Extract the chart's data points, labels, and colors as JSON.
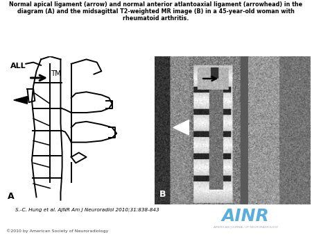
{
  "title": "Normal apical ligament (arrow) and normal anterior atlantoaxial ligament (arrowhead) in the\ndiagram (A) and the midsagittal T2-weighted MR image (B) in a 45-year-old woman with\nrheumatoid arthritis.",
  "citation": "S.-C. Hung et al. AJNR Am J Neuroradiol 2010;31:838-843",
  "copyright": "©2010 by American Society of Neuroradiology",
  "ainr_text": "AINR",
  "ainr_subtext": "AMERICAN JOURNAL OF NEURORADIOLOGY",
  "ainr_bg_color": "#1a5fa8",
  "ainr_text_color": "#5aaedc",
  "ainr_subtext_color": "#aaaacc",
  "bg_color": "#ffffff",
  "fig_width": 4.5,
  "fig_height": 3.38,
  "dpi": 100,
  "panel_a_label": "A",
  "panel_b_label": "B",
  "label_ALL": "ALL",
  "label_TM": "TM",
  "diagram_line_color": "#000000"
}
